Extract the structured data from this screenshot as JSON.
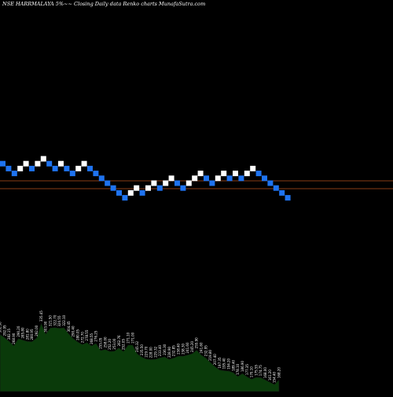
{
  "header": {
    "title": "NSE HARRMALAYA 5%~~  Closing Daily data  Renko  charts MunafaSutra.com"
  },
  "colors": {
    "background": "#000000",
    "up_brick": "#ffffff",
    "down_brick": "#1e73f0",
    "reference_line": "#b4501e",
    "area_fill": "#0a3a0a",
    "area_stroke": "#111111"
  },
  "chart_data": [
    {
      "type": "renko",
      "bricks": [
        "down",
        "down",
        "down",
        "up",
        "up",
        "down",
        "up",
        "up",
        "down",
        "down",
        "up",
        "down",
        "down",
        "up",
        "up",
        "down",
        "down",
        "down",
        "down",
        "down",
        "down",
        "down",
        "up",
        "up",
        "down",
        "up",
        "up",
        "down",
        "up",
        "up",
        "down",
        "down",
        "up",
        "up",
        "up",
        "down",
        "down",
        "up",
        "up",
        "down",
        "up",
        "down",
        "up",
        "up",
        "down",
        "down",
        "down",
        "down",
        "down",
        "down"
      ],
      "reference_lines": 2
    },
    {
      "type": "area",
      "labels": [
        "302.50",
        "292.95",
        "282.15",
        "268.90",
        "290.20",
        "285.80",
        "281.80",
        "280.95",
        "292.00",
        "335.45",
        "303.90",
        "321.50",
        "322.70",
        "320.55",
        "322.10",
        "304.45",
        "290.40",
        "280.05",
        "272.70",
        "278.55",
        "268.55",
        "276.25",
        "255.05",
        "258.00",
        "252.20",
        "253.00",
        "262.76",
        "252.05",
        "271.10",
        "271.00",
        "245.32",
        "235.50",
        "229.70",
        "228.00",
        "229.32",
        "233.40",
        "236.30",
        "228.90",
        "232.85",
        "238.40",
        "238.30",
        "241.60",
        "245.20",
        "255.90",
        "241.60",
        "232.95",
        "219.80",
        "207.40",
        "197.35",
        "195.40",
        "194.20",
        "189.40",
        "178.10",
        "186.90",
        "177.35",
        "170.10",
        "175.55",
        "174.75",
        "168.00",
        "161.20",
        "154.40",
        "168.20"
      ]
    }
  ]
}
